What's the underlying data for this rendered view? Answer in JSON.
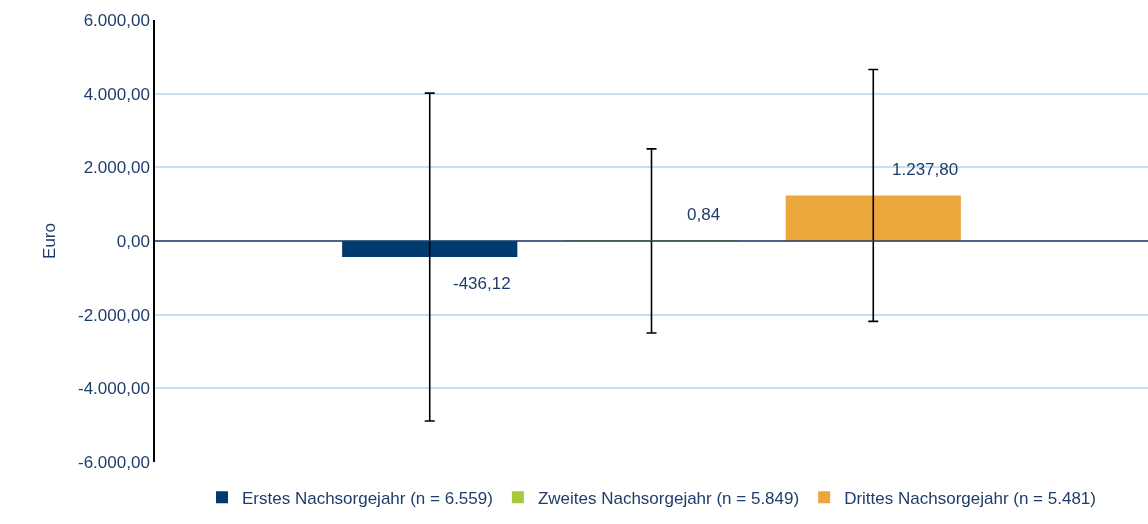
{
  "chart_data": {
    "type": "bar",
    "ylabel": "Euro",
    "categories": [
      null
    ],
    "series": [
      {
        "name": "Erstes Nachsorgejahr (n = 6.559)",
        "color": "#003b6f",
        "values": [
          -436.12
        ],
        "errors": [
          4450
        ],
        "value_labels": [
          "-436,12"
        ]
      },
      {
        "name": "Zweites Nachsorgejahr (n = 5.849)",
        "color": "#a8c83c",
        "values": [
          0.84
        ],
        "errors": [
          2500
        ],
        "value_labels": [
          "0,84"
        ]
      },
      {
        "name": "Drittes Nachsorgejahr (n = 5.481)",
        "color": "#eba63c",
        "values": [
          1237.8
        ],
        "errors": [
          3420
        ],
        "value_labels": [
          "1.237,80"
        ]
      }
    ],
    "ylim": [
      -6000,
      6000
    ],
    "yticks": [
      {
        "value": -6000,
        "label": "-6.000,00"
      },
      {
        "value": -4000,
        "label": "-4.000,00"
      },
      {
        "value": -2000,
        "label": "-2.000,00"
      },
      {
        "value": 0,
        "label": "0,00"
      },
      {
        "value": 2000,
        "label": "2.000,00"
      },
      {
        "value": 4000,
        "label": "4.000,00"
      },
      {
        "value": 6000,
        "label": "6.000,00"
      }
    ],
    "ref_lines": [
      {
        "axis": "y",
        "value": 0,
        "color": "#1f3d6b"
      }
    ],
    "grid": "y",
    "legend": "bottom"
  }
}
